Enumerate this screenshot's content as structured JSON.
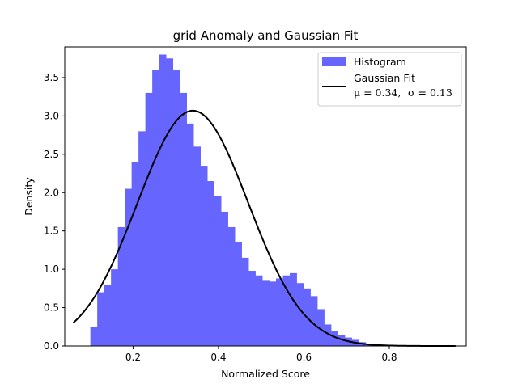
{
  "chart_data": {
    "type": "bar",
    "title": "grid Anomaly and Gaussian Fit",
    "xlabel": "Normalized Score",
    "ylabel": "Density",
    "xlim": [
      0.04,
      0.98
    ],
    "ylim": [
      0,
      3.9
    ],
    "xticks": [
      0.2,
      0.4,
      0.6,
      0.8
    ],
    "yticks": [
      0.0,
      0.5,
      1.0,
      1.5,
      2.0,
      2.5,
      3.0,
      3.5
    ],
    "xtick_labels": [
      "0.2",
      "0.4",
      "0.6",
      "0.8"
    ],
    "ytick_labels": [
      "0.0",
      "0.5",
      "1.0",
      "1.5",
      "2.0",
      "2.5",
      "3.0",
      "3.5"
    ],
    "grid": false,
    "legend_position": "top-right",
    "histogram": {
      "name": "Histogram",
      "color": "#6666ff",
      "bin_start": 0.1,
      "bin_width": 0.0161,
      "densities": [
        0.25,
        0.7,
        0.8,
        1.0,
        1.55,
        2.05,
        2.4,
        2.8,
        3.3,
        3.6,
        3.8,
        3.75,
        3.6,
        3.3,
        2.9,
        2.6,
        2.35,
        2.15,
        1.95,
        1.75,
        1.55,
        1.35,
        1.15,
        0.98,
        0.92,
        0.85,
        0.84,
        0.88,
        0.92,
        0.95,
        0.82,
        0.75,
        0.65,
        0.48,
        0.28,
        0.2,
        0.14,
        0.11,
        0.08,
        0.05,
        0.03,
        0.02,
        0.01,
        0.005
      ]
    },
    "fit": {
      "name": "Gaussian Fit",
      "color": "#000000",
      "mu": 0.34,
      "sigma": 0.13,
      "x_start": 0.06,
      "x_end": 0.955,
      "label_mu": "μ = 0.34,",
      "label_sigma": "σ = 0.13"
    }
  }
}
